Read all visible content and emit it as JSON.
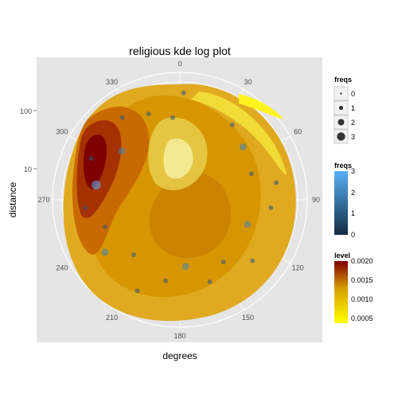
{
  "chart_data": {
    "type": "kde-polar-scatter",
    "title": "religious kde log plot",
    "xlabel": "degrees",
    "ylabel": "distance",
    "y_scale": "log",
    "theta_ticks": [
      "0",
      "30",
      "60",
      "90",
      "120",
      "150",
      "180",
      "210",
      "240",
      "270",
      "300",
      "330"
    ],
    "r_ticks": [
      "100",
      "10"
    ],
    "legends": {
      "size": {
        "title": "freqs",
        "labels": [
          "0",
          "1",
          "2",
          "3"
        ]
      },
      "color": {
        "title": "freqs",
        "labels": [
          "3",
          "2",
          "1",
          "0"
        ],
        "low": "#132B43",
        "high": "#56B1F7"
      },
      "level": {
        "title": "level",
        "labels": [
          "0.0020",
          "0.0015",
          "0.0010",
          "0.0005"
        ],
        "low": "#FFFF00",
        "high": "#7F0000"
      }
    },
    "grid": true,
    "legend_position": "right",
    "points": [
      {
        "deg": 2,
        "dist": 120,
        "freq": 1
      },
      {
        "deg": 35,
        "dist": 60,
        "freq": 1
      },
      {
        "deg": 50,
        "dist": 40,
        "freq": 2
      },
      {
        "deg": 70,
        "dist": 30,
        "freq": 1
      },
      {
        "deg": 80,
        "dist": 80,
        "freq": 1
      },
      {
        "deg": 95,
        "dist": 60,
        "freq": 1
      },
      {
        "deg": 110,
        "dist": 25,
        "freq": 2
      },
      {
        "deg": 130,
        "dist": 70,
        "freq": 1
      },
      {
        "deg": 145,
        "dist": 30,
        "freq": 1
      },
      {
        "deg": 160,
        "dist": 50,
        "freq": 1
      },
      {
        "deg": 175,
        "dist": 20,
        "freq": 2
      },
      {
        "deg": 190,
        "dist": 40,
        "freq": 1
      },
      {
        "deg": 205,
        "dist": 90,
        "freq": 1
      },
      {
        "deg": 220,
        "dist": 25,
        "freq": 1
      },
      {
        "deg": 235,
        "dist": 60,
        "freq": 2
      },
      {
        "deg": 250,
        "dist": 35,
        "freq": 1
      },
      {
        "deg": 265,
        "dist": 70,
        "freq": 1
      },
      {
        "deg": 280,
        "dist": 45,
        "freq": 3
      },
      {
        "deg": 295,
        "dist": 80,
        "freq": 1
      },
      {
        "deg": 310,
        "dist": 30,
        "freq": 2
      },
      {
        "deg": 325,
        "dist": 90,
        "freq": 1
      },
      {
        "deg": 340,
        "dist": 60,
        "freq": 1
      },
      {
        "deg": 355,
        "dist": 40,
        "freq": 1
      }
    ]
  }
}
